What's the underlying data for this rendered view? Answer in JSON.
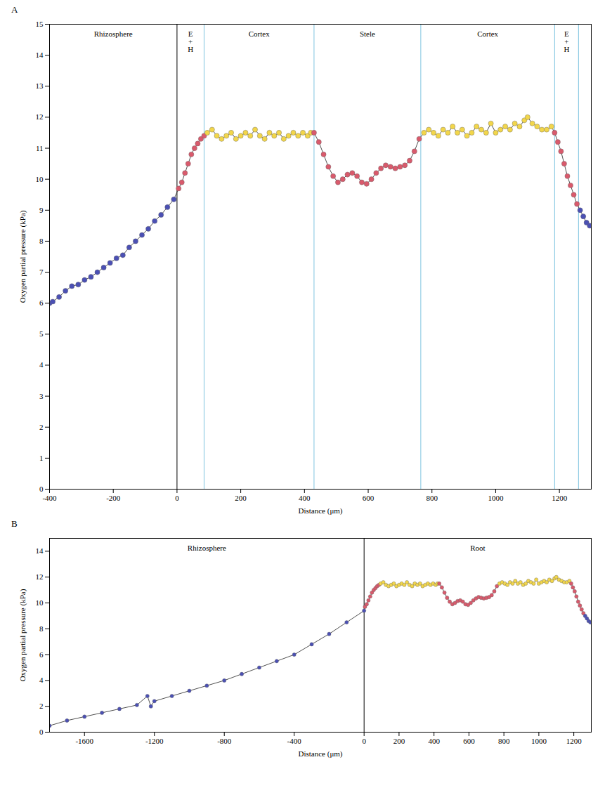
{
  "chart_data": [
    {
      "type": "scatter",
      "title": "A",
      "x_label": "Distance (μm)",
      "y_label": "Oxygen partial pressure (kPa)",
      "xlim": [
        -400,
        1300
      ],
      "xticks": [
        -400,
        -200,
        0,
        200,
        400,
        600,
        800,
        1000,
        1200
      ],
      "ylim": [
        0,
        15
      ],
      "yticks": [
        0,
        1,
        2,
        3,
        4,
        5,
        6,
        7,
        8,
        9,
        10,
        11,
        12,
        13,
        14,
        15
      ],
      "regions": [
        {
          "label": "Rhizosphere",
          "x0": -400,
          "x1": 0
        },
        {
          "label": "E\n+\nH",
          "x0": 0,
          "x1": 85
        },
        {
          "label": "Cortex",
          "x0": 85,
          "x1": 430
        },
        {
          "label": "Stele",
          "x0": 430,
          "x1": 765
        },
        {
          "label": "Cortex",
          "x0": 765,
          "x1": 1185
        },
        {
          "label": "E\n+\nH",
          "x0": 1185,
          "x1": 1260
        }
      ],
      "boundaries": [
        {
          "x": 0,
          "color": "#000000"
        },
        {
          "x": 85,
          "color": "#7fc4e0"
        },
        {
          "x": 430,
          "color": "#7fc4e0"
        },
        {
          "x": 765,
          "color": "#7fc4e0"
        },
        {
          "x": 1185,
          "color": "#7fc4e0"
        },
        {
          "x": 1260,
          "color": "#7fc4e0"
        }
      ],
      "series": [
        {
          "color": "#4b50b4",
          "marker": "circle",
          "x": [
            -400,
            -390,
            -370,
            -350,
            -330,
            -310,
            -290,
            -270,
            -250,
            -230,
            -210,
            -190,
            -170,
            -150,
            -130,
            -110,
            -90,
            -70,
            -50,
            -30,
            -10
          ],
          "values": [
            6.0,
            6.05,
            6.2,
            6.4,
            6.55,
            6.6,
            6.75,
            6.85,
            7.0,
            7.15,
            7.3,
            7.45,
            7.55,
            7.8,
            8.0,
            8.2,
            8.4,
            8.65,
            8.85,
            9.1,
            9.35
          ]
        },
        {
          "color": "#d95a6c",
          "marker": "circle",
          "x": [
            5,
            15,
            25,
            35,
            45,
            55,
            65,
            75,
            85
          ],
          "values": [
            9.7,
            9.9,
            10.2,
            10.5,
            10.8,
            11.0,
            11.15,
            11.3,
            11.4
          ]
        },
        {
          "color": "#f2d64b",
          "marker": "circle",
          "x": [
            95,
            110,
            125,
            140,
            155,
            170,
            185,
            200,
            215,
            230,
            245,
            260,
            275,
            290,
            305,
            320,
            335,
            350,
            365,
            380,
            395,
            410,
            420
          ],
          "values": [
            11.5,
            11.6,
            11.4,
            11.3,
            11.4,
            11.5,
            11.3,
            11.4,
            11.5,
            11.4,
            11.6,
            11.4,
            11.3,
            11.5,
            11.4,
            11.5,
            11.3,
            11.4,
            11.5,
            11.4,
            11.5,
            11.4,
            11.5
          ]
        },
        {
          "color": "#d95a6c",
          "marker": "circle",
          "x": [
            430,
            445,
            460,
            475,
            490,
            505,
            520,
            535,
            550,
            565,
            580,
            595,
            610,
            625,
            640,
            655,
            670,
            685,
            700,
            715,
            730,
            745,
            760
          ],
          "values": [
            11.5,
            11.2,
            10.8,
            10.4,
            10.1,
            9.9,
            10.0,
            10.15,
            10.2,
            10.1,
            9.9,
            9.85,
            10.0,
            10.2,
            10.35,
            10.45,
            10.4,
            10.35,
            10.4,
            10.45,
            10.6,
            10.9,
            11.3
          ]
        },
        {
          "color": "#f2d64b",
          "marker": "circle",
          "x": [
            775,
            790,
            805,
            820,
            835,
            850,
            865,
            880,
            895,
            910,
            925,
            940,
            955,
            970,
            985,
            1000,
            1015,
            1030,
            1045,
            1060,
            1075,
            1090,
            1100,
            1115,
            1130,
            1145,
            1160,
            1175
          ],
          "values": [
            11.5,
            11.6,
            11.5,
            11.4,
            11.6,
            11.5,
            11.7,
            11.5,
            11.6,
            11.4,
            11.5,
            11.7,
            11.6,
            11.5,
            11.8,
            11.5,
            11.6,
            11.7,
            11.6,
            11.8,
            11.7,
            11.9,
            12.0,
            11.8,
            11.7,
            11.6,
            11.6,
            11.7
          ]
        },
        {
          "color": "#d95a6c",
          "marker": "circle",
          "x": [
            1185,
            1195,
            1205,
            1215,
            1225,
            1235,
            1245,
            1255
          ],
          "values": [
            11.5,
            11.2,
            10.9,
            10.5,
            10.1,
            9.8,
            9.5,
            9.2
          ]
        },
        {
          "color": "#4b50b4",
          "marker": "circle",
          "x": [
            1265,
            1275,
            1285,
            1295
          ],
          "values": [
            9.0,
            8.8,
            8.6,
            8.5
          ]
        }
      ]
    },
    {
      "type": "scatter",
      "title": "B",
      "x_label": "Distance (μm)",
      "y_label": "Oxygen partial pressure (kPa)",
      "xlim": [
        -1800,
        1300
      ],
      "xticks": [
        -1600,
        -1200,
        -800,
        -400,
        0,
        200,
        400,
        600,
        800,
        1000,
        1200
      ],
      "ylim": [
        0,
        15
      ],
      "yticks": [
        0,
        2,
        4,
        6,
        8,
        10,
        12,
        14
      ],
      "regions": [
        {
          "label": "Rhizosphere",
          "x0": -1800,
          "x1": 0
        },
        {
          "label": "Root",
          "x0": 0,
          "x1": 1300
        }
      ],
      "boundaries": [
        {
          "x": 0,
          "color": "#000000"
        }
      ],
      "series": [
        {
          "color": "#4b50b4",
          "marker": "circle",
          "x": [
            -1800,
            -1700,
            -1600,
            -1500,
            -1400,
            -1300,
            -1240,
            -1220,
            -1200,
            -1100,
            -1000,
            -900,
            -800,
            -700,
            -600,
            -500,
            -400,
            -300,
            -200,
            -100,
            0
          ],
          "values": [
            0.5,
            0.9,
            1.2,
            1.5,
            1.8,
            2.1,
            2.8,
            2.0,
            2.4,
            2.8,
            3.2,
            3.6,
            4.0,
            4.5,
            5.0,
            5.5,
            6.0,
            6.8,
            7.6,
            8.5,
            9.4
          ]
        },
        {
          "color": "#d95a6c",
          "marker": "circle",
          "x": [
            5,
            15,
            25,
            35,
            45,
            55,
            65,
            75,
            85
          ],
          "values": [
            9.7,
            9.9,
            10.2,
            10.5,
            10.8,
            11.0,
            11.15,
            11.3,
            11.4
          ]
        },
        {
          "color": "#f2d64b",
          "marker": "circle",
          "x": [
            95,
            110,
            125,
            140,
            155,
            170,
            185,
            200,
            215,
            230,
            245,
            260,
            275,
            290,
            305,
            320,
            335,
            350,
            365,
            380,
            395,
            410,
            420
          ],
          "values": [
            11.5,
            11.6,
            11.4,
            11.3,
            11.4,
            11.5,
            11.3,
            11.4,
            11.5,
            11.4,
            11.6,
            11.4,
            11.3,
            11.5,
            11.4,
            11.5,
            11.3,
            11.4,
            11.5,
            11.4,
            11.5,
            11.4,
            11.5
          ]
        },
        {
          "color": "#d95a6c",
          "marker": "circle",
          "x": [
            430,
            445,
            460,
            475,
            490,
            505,
            520,
            535,
            550,
            565,
            580,
            595,
            610,
            625,
            640,
            655,
            670,
            685,
            700,
            715,
            730,
            745,
            760
          ],
          "values": [
            11.5,
            11.2,
            10.8,
            10.4,
            10.1,
            9.9,
            10.0,
            10.15,
            10.2,
            10.1,
            9.9,
            9.85,
            10.0,
            10.2,
            10.35,
            10.45,
            10.4,
            10.35,
            10.4,
            10.45,
            10.6,
            10.9,
            11.3
          ]
        },
        {
          "color": "#f2d64b",
          "marker": "circle",
          "x": [
            775,
            790,
            805,
            820,
            835,
            850,
            865,
            880,
            895,
            910,
            925,
            940,
            955,
            970,
            985,
            1000,
            1015,
            1030,
            1045,
            1060,
            1075,
            1090,
            1100,
            1115,
            1130,
            1145,
            1160,
            1175
          ],
          "values": [
            11.5,
            11.6,
            11.5,
            11.4,
            11.6,
            11.5,
            11.7,
            11.5,
            11.6,
            11.4,
            11.5,
            11.7,
            11.6,
            11.5,
            11.8,
            11.5,
            11.6,
            11.7,
            11.6,
            11.8,
            11.7,
            11.9,
            12.0,
            11.8,
            11.7,
            11.6,
            11.6,
            11.7
          ]
        },
        {
          "color": "#d95a6c",
          "marker": "circle",
          "x": [
            1185,
            1195,
            1205,
            1215,
            1225,
            1235,
            1245,
            1255
          ],
          "values": [
            11.5,
            11.2,
            10.9,
            10.5,
            10.1,
            9.8,
            9.5,
            9.2
          ]
        },
        {
          "color": "#4b50b4",
          "marker": "circle",
          "x": [
            1265,
            1275,
            1285,
            1295
          ],
          "values": [
            9.0,
            8.8,
            8.6,
            8.5
          ]
        }
      ]
    }
  ]
}
